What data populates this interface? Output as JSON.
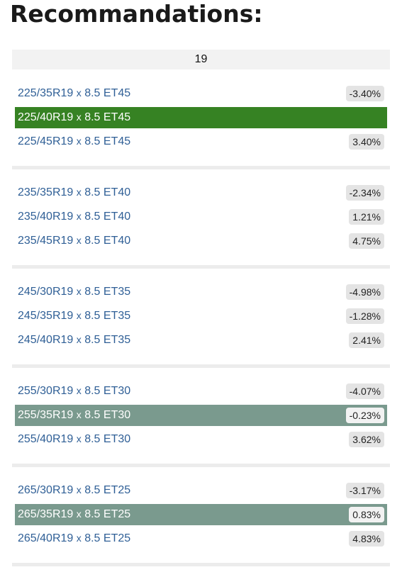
{
  "page": {
    "title": "Recommandations:",
    "rim_diameter": "19",
    "separator": "x"
  },
  "colors": {
    "link": "#2f5f96",
    "highlight_green": "#368223",
    "highlight_gray": "#7a9a8e",
    "badge_bg": "#e4e4e4",
    "header_bg": "#f2f2f2"
  },
  "groups": [
    {
      "rows": [
        {
          "size": "225/35R19",
          "spec": "8.5 ET45",
          "diff": "-3.40%",
          "highlight": "none"
        },
        {
          "size": "225/40R19",
          "spec": "8.5 ET45",
          "diff": "",
          "highlight": "green"
        },
        {
          "size": "225/45R19",
          "spec": "8.5 ET45",
          "diff": "3.40%",
          "highlight": "none"
        }
      ]
    },
    {
      "rows": [
        {
          "size": "235/35R19",
          "spec": "8.5 ET40",
          "diff": "-2.34%",
          "highlight": "none"
        },
        {
          "size": "235/40R19",
          "spec": "8.5 ET40",
          "diff": "1.21%",
          "highlight": "none"
        },
        {
          "size": "235/45R19",
          "spec": "8.5 ET40",
          "diff": "4.75%",
          "highlight": "none"
        }
      ]
    },
    {
      "rows": [
        {
          "size": "245/30R19",
          "spec": "8.5 ET35",
          "diff": "-4.98%",
          "highlight": "none"
        },
        {
          "size": "245/35R19",
          "spec": "8.5 ET35",
          "diff": "-1.28%",
          "highlight": "none"
        },
        {
          "size": "245/40R19",
          "spec": "8.5 ET35",
          "diff": "2.41%",
          "highlight": "none"
        }
      ]
    },
    {
      "rows": [
        {
          "size": "255/30R19",
          "spec": "8.5 ET30",
          "diff": "-4.07%",
          "highlight": "none"
        },
        {
          "size": "255/35R19",
          "spec": "8.5 ET30",
          "diff": "-0.23%",
          "highlight": "gray"
        },
        {
          "size": "255/40R19",
          "spec": "8.5 ET30",
          "diff": "3.62%",
          "highlight": "none"
        }
      ]
    },
    {
      "rows": [
        {
          "size": "265/30R19",
          "spec": "8.5 ET25",
          "diff": "-3.17%",
          "highlight": "none"
        },
        {
          "size": "265/35R19",
          "spec": "8.5 ET25",
          "diff": "0.83%",
          "highlight": "gray"
        },
        {
          "size": "265/40R19",
          "spec": "8.5 ET25",
          "diff": "4.83%",
          "highlight": "none"
        }
      ]
    }
  ]
}
